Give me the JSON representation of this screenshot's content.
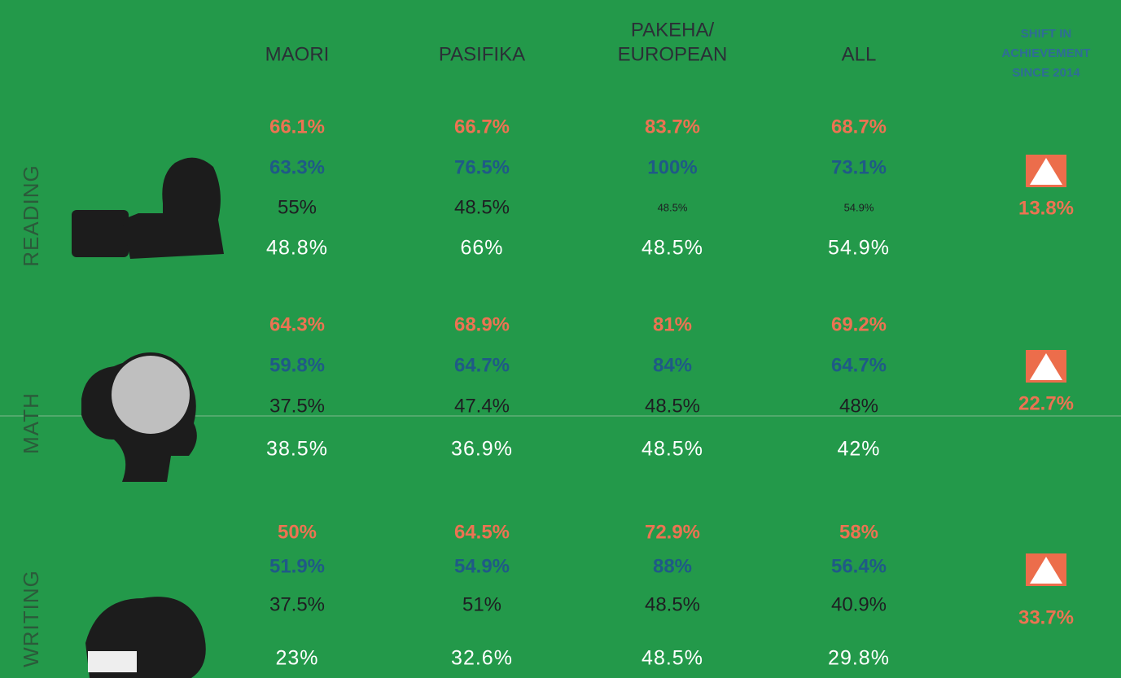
{
  "header": {
    "columns": [
      [
        "MAORI"
      ],
      [
        "PASIFIKA"
      ],
      [
        "PAKEHA/",
        "EUROPEAN"
      ],
      [
        "ALL"
      ]
    ],
    "shift": [
      "SHIFT IN",
      "ACHIEVEMENT",
      "SINCE 2014"
    ]
  },
  "sections": [
    {
      "label": "READING",
      "rows": [
        [
          "66.1%",
          "66.7%",
          "83.7%",
          "68.7%"
        ],
        [
          "63.3%",
          "76.5%",
          "100%",
          "73.1%"
        ],
        [
          "55%",
          "48.5%",
          "48.5%",
          "54.9%"
        ],
        [
          "48.8%",
          "66%",
          "48.5%",
          "54.9%"
        ]
      ],
      "shift": "13.8%"
    },
    {
      "label": "MATH",
      "rows": [
        [
          "64.3%",
          "68.9%",
          "81%",
          "69.2%"
        ],
        [
          "59.8%",
          "64.7%",
          "84%",
          "64.7%"
        ],
        [
          "37.5%",
          "47.4%",
          "48.5%",
          "48%"
        ],
        [
          "38.5%",
          "36.9%",
          "48.5%",
          "42%"
        ]
      ],
      "shift": "22.7%"
    },
    {
      "label": "WRITING",
      "rows": [
        [
          "50%",
          "64.5%",
          "72.9%",
          "58%"
        ],
        [
          "51.9%",
          "54.9%",
          "88%",
          "56.4%"
        ],
        [
          "37.5%",
          "51%",
          "48.5%",
          "40.9%"
        ],
        [
          "23%",
          "32.6%",
          "48.5%",
          "29.8%"
        ]
      ],
      "shift": "33.7%"
    }
  ]
}
